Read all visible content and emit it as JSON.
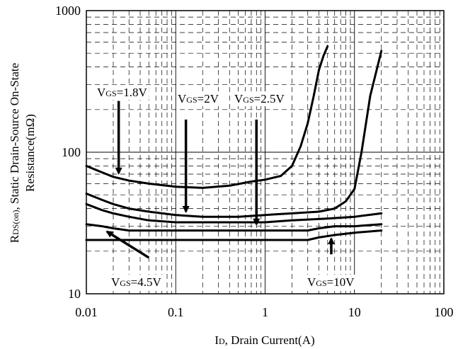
{
  "chart_data": {
    "type": "line",
    "x_scale": "log",
    "y_scale": "log",
    "xlim": [
      0.01,
      100
    ],
    "ylim": [
      10,
      1000
    ],
    "grid": true,
    "xlabel": {
      "main": "I",
      "sub": "D",
      "rest": ", Drain Current(A)"
    },
    "ylabel": {
      "line1_main": "R",
      "line1_sub": "DS(on)",
      "line1_rest": ", Static Drain-Source On-State",
      "line2": "Resistance(mΩ)"
    },
    "x_ticks": [
      {
        "value": 0.01,
        "label": "0.01"
      },
      {
        "value": 0.1,
        "label": "0.1"
      },
      {
        "value": 1,
        "label": "1"
      },
      {
        "value": 10,
        "label": "10"
      },
      {
        "value": 100,
        "label": "100"
      }
    ],
    "y_ticks": [
      {
        "value": 10,
        "label": "10"
      },
      {
        "value": 100,
        "label": "100"
      },
      {
        "value": 1000,
        "label": "1000"
      }
    ],
    "series": [
      {
        "name": "VGS=1.8V",
        "x": [
          0.01,
          0.015,
          0.02,
          0.03,
          0.05,
          0.1,
          0.2,
          0.4,
          0.7,
          1.0,
          1.5,
          2.0,
          2.5,
          3.0,
          3.5,
          4.0,
          4.5,
          5.0
        ],
        "y": [
          80,
          72,
          67,
          63,
          60,
          57,
          56,
          58,
          62,
          64,
          68,
          80,
          110,
          160,
          250,
          380,
          480,
          560
        ]
      },
      {
        "name": "VGS=2V",
        "x": [
          0.01,
          0.015,
          0.02,
          0.03,
          0.05,
          0.1,
          0.2,
          0.5,
          1.0,
          2.0,
          4.0,
          6.0,
          8.0,
          10.0,
          12.0,
          15.0,
          20.0
        ],
        "y": [
          51,
          46,
          43,
          40,
          38,
          36,
          35,
          35,
          36,
          37,
          38,
          40,
          45,
          55,
          100,
          250,
          520
        ]
      },
      {
        "name": "VGS=2.5V",
        "x": [
          0.01,
          0.015,
          0.02,
          0.03,
          0.05,
          0.1,
          0.2,
          0.5,
          1.0,
          2.0,
          5.0,
          10.0,
          20.0
        ],
        "y": [
          43,
          39,
          37,
          35,
          33,
          32,
          32,
          32,
          32,
          33,
          34,
          35,
          37
        ]
      },
      {
        "name": "VGS=4.5V",
        "x": [
          0.01,
          0.015,
          0.02,
          0.03,
          0.05,
          0.1,
          1.0,
          3.0,
          4.0,
          6.0,
          10.0,
          20.0
        ],
        "y": [
          31,
          30,
          29,
          28,
          28,
          28,
          28,
          28,
          29,
          30,
          30,
          31
        ]
      },
      {
        "name": "VGS=10V",
        "x": [
          0.01,
          0.1,
          1.0,
          3.0,
          4.0,
          6.0,
          10.0,
          20.0
        ],
        "y": [
          24,
          24,
          24,
          24,
          25,
          26,
          27,
          28
        ]
      }
    ],
    "annotations": [
      {
        "main": "V",
        "sub": "GS",
        "rest": "=1.8V",
        "arrow_x": 0.023,
        "arrow_y_from": 230,
        "arrow_y_to": 71
      },
      {
        "main": "V",
        "sub": "GS",
        "rest": "=2V",
        "arrow_x": 0.13,
        "arrow_y_from": 170,
        "arrow_y_to": 38
      },
      {
        "main": "V",
        "sub": "GS",
        "rest": "=2.5V",
        "arrow_x": 0.8,
        "arrow_y_from": 170,
        "arrow_y_to": 31
      },
      {
        "main": "V",
        "sub": "GS",
        "rest": "=4.5V",
        "arrow_x_from": 0.05,
        "arrow_y_from": 18,
        "arrow_x_to": 0.017,
        "arrow_y_to": 27.5
      },
      {
        "main": "V",
        "sub": "GS",
        "rest": "=10V",
        "arrow_x": 5.5,
        "arrow_y_from": 19,
        "arrow_y_to": 24.5
      }
    ]
  }
}
